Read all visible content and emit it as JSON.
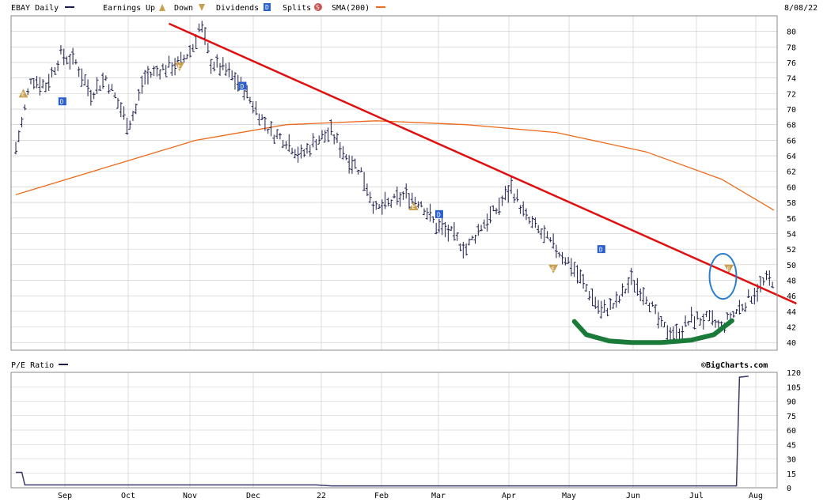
{
  "header": {
    "symbol_label": "EBAY Daily",
    "earnings_label": "Earnings",
    "up_label": "Up",
    "down_label": "Down",
    "dividends_label": "Dividends",
    "splits_label": "Splits",
    "sma_label": "SMA(200)",
    "date": "8/08/22",
    "earnings_icon": "E",
    "dividend_icon": "D",
    "split_icon": "S"
  },
  "colors": {
    "price_bars": "#1c1c4a",
    "sma": "#ee6a1a",
    "trendline": "#e01010",
    "annotation_curve": "#1a7a3a",
    "annotation_circle": "#2a7fd0",
    "dividend_marker": "#2a5fd0",
    "split_marker": "#d05050",
    "earnings_marker": "#c8a050",
    "grid": "#c8c8c8"
  },
  "pe_panel": {
    "label": "P/E Ratio",
    "brand": "©BigCharts.com"
  },
  "chart_data": [
    {
      "type": "ohlc",
      "title": "EBAY Daily",
      "ylim": [
        39,
        82
      ],
      "y_ticks": [
        "80",
        "78",
        "76",
        "74",
        "72",
        "70",
        "68",
        "66",
        "64",
        "62",
        "60",
        "58",
        "56",
        "54",
        "52",
        "50",
        "48",
        "46",
        "44",
        "42",
        "40"
      ],
      "x_ticks": [
        "Sep",
        "Oct",
        "Nov",
        "Dec",
        "22",
        "Feb",
        "Mar",
        "Apr",
        "May",
        "Jun",
        "Jul",
        "Aug"
      ],
      "grid": true,
      "series": [
        {
          "name": "EBAY Daily",
          "style": "ohlc-bars",
          "anchors": [
            [
              0,
              65
            ],
            [
              5,
              69
            ],
            [
              10,
              74
            ],
            [
              20,
              73
            ],
            [
              30,
              77
            ],
            [
              40,
              76
            ],
            [
              50,
              72
            ],
            [
              60,
              74
            ],
            [
              70,
              70
            ],
            [
              75,
              68
            ],
            [
              80,
              70
            ],
            [
              85,
              74
            ],
            [
              95,
              75
            ],
            [
              110,
              76
            ],
            [
              118,
              78
            ],
            [
              123,
              81
            ],
            [
              130,
              76
            ],
            [
              140,
              75
            ],
            [
              150,
              73
            ],
            [
              160,
              70
            ],
            [
              170,
              67
            ],
            [
              180,
              66
            ],
            [
              190,
              64
            ],
            [
              200,
              66
            ],
            [
              210,
              67
            ],
            [
              220,
              64
            ],
            [
              230,
              62
            ],
            [
              240,
              57
            ],
            [
              250,
              58
            ],
            [
              260,
              59
            ],
            [
              270,
              58
            ],
            [
              280,
              55
            ],
            [
              290,
              54
            ],
            [
              300,
              52
            ],
            [
              310,
              55
            ],
            [
              320,
              57
            ],
            [
              330,
              60
            ],
            [
              340,
              56
            ],
            [
              350,
              54
            ],
            [
              360,
              52
            ],
            [
              370,
              50
            ],
            [
              380,
              47
            ],
            [
              390,
              44
            ],
            [
              400,
              45
            ],
            [
              410,
              48
            ],
            [
              420,
              46
            ],
            [
              430,
              42
            ],
            [
              440,
              41
            ],
            [
              450,
              43
            ],
            [
              460,
              43
            ],
            [
              470,
              42
            ],
            [
              480,
              44
            ],
            [
              490,
              46
            ],
            [
              500,
              48
            ],
            [
              505,
              48
            ]
          ]
        },
        {
          "name": "SMA(200)",
          "style": "line",
          "points": [
            [
              0,
              59
            ],
            [
              60,
              62.5
            ],
            [
              120,
              66
            ],
            [
              180,
              68
            ],
            [
              240,
              68.5
            ],
            [
              300,
              68
            ],
            [
              360,
              67
            ],
            [
              420,
              64.5
            ],
            [
              470,
              61
            ],
            [
              505,
              57
            ]
          ]
        }
      ],
      "events": [
        {
          "kind": "earnings-up",
          "label": "E",
          "x": 5,
          "y": 72
        },
        {
          "kind": "dividend",
          "label": "D",
          "x": 31,
          "y": 71
        },
        {
          "kind": "earnings-down",
          "label": "E",
          "x": 109,
          "y": 75.5
        },
        {
          "kind": "dividend",
          "label": "D",
          "x": 151,
          "y": 73
        },
        {
          "kind": "earnings-up",
          "label": "E",
          "x": 265,
          "y": 57.5
        },
        {
          "kind": "dividend",
          "label": "D",
          "x": 282,
          "y": 56.5
        },
        {
          "kind": "earnings-down",
          "label": "E",
          "x": 358,
          "y": 49.5
        },
        {
          "kind": "dividend",
          "label": "D",
          "x": 390,
          "y": 52
        },
        {
          "kind": "earnings-down",
          "label": "E",
          "x": 475,
          "y": 49.5
        }
      ],
      "annotations": [
        {
          "kind": "trendline",
          "from": [
            102,
            81
          ],
          "to": [
            520,
            45
          ]
        },
        {
          "kind": "curve",
          "points": [
            [
              372,
              42.7
            ],
            [
              380,
              41
            ],
            [
              395,
              40.2
            ],
            [
              410,
              40
            ],
            [
              430,
              40
            ],
            [
              450,
              40.3
            ],
            [
              465,
              41
            ],
            [
              477,
              42.8
            ]
          ]
        },
        {
          "kind": "circle",
          "center": [
            471,
            48.5
          ],
          "ry_units": 2.9
        }
      ]
    },
    {
      "type": "line",
      "title": "P/E Ratio",
      "ylim": [
        0,
        120
      ],
      "y_ticks": [
        "120",
        "105",
        "90",
        "75",
        "60",
        "45",
        "30",
        "15",
        "0"
      ],
      "grid": true,
      "series": [
        {
          "name": "P/E Ratio",
          "points": [
            [
              0,
              16
            ],
            [
              4,
              16
            ],
            [
              6,
              3
            ],
            [
              200,
              3
            ],
            [
              210,
              2
            ],
            [
              480,
              2
            ],
            [
              482,
              115
            ],
            [
              488,
              116
            ]
          ]
        }
      ]
    }
  ]
}
